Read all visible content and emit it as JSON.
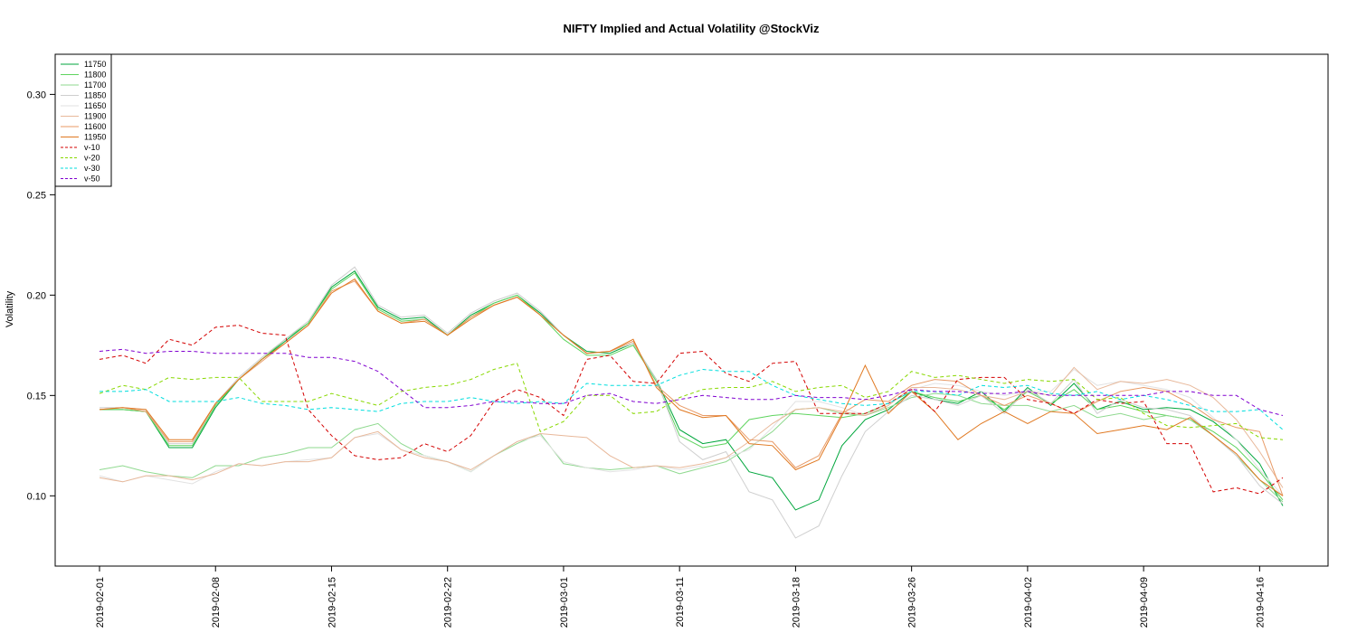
{
  "chart_data": {
    "type": "line",
    "title": "NIFTY Implied and Actual Volatility @StockViz",
    "xlabel": "",
    "ylabel": "Volatility",
    "ylim": [
      0.065,
      0.32
    ],
    "yticks": [
      0.1,
      0.15,
      0.2,
      0.25,
      0.3
    ],
    "ytick_labels": [
      "0.10",
      "0.15",
      "0.20",
      "0.25",
      "0.30"
    ],
    "x": [
      "2019-02-01",
      "2019-02-04",
      "2019-02-05",
      "2019-02-06",
      "2019-02-07",
      "2019-02-08",
      "2019-02-11",
      "2019-02-12",
      "2019-02-13",
      "2019-02-14",
      "2019-02-15",
      "2019-02-18",
      "2019-02-19",
      "2019-02-20",
      "2019-02-21",
      "2019-02-22",
      "2019-02-25",
      "2019-02-26",
      "2019-02-27",
      "2019-02-28",
      "2019-03-01",
      "2019-03-05",
      "2019-03-06",
      "2019-03-07",
      "2019-03-08",
      "2019-03-11",
      "2019-03-12",
      "2019-03-13",
      "2019-03-14",
      "2019-03-15",
      "2019-03-18",
      "2019-03-19",
      "2019-03-20",
      "2019-03-22",
      "2019-03-25",
      "2019-03-26",
      "2019-03-27",
      "2019-03-28",
      "2019-03-29",
      "2019-04-01",
      "2019-04-02",
      "2019-04-03",
      "2019-04-04",
      "2019-04-05",
      "2019-04-08",
      "2019-04-09",
      "2019-04-10",
      "2019-04-11",
      "2019-04-12",
      "2019-04-15",
      "2019-04-16",
      "2019-04-18"
    ],
    "xtick_labels": [
      "2019-02-01",
      "2019-02-08",
      "2019-02-15",
      "2019-02-22",
      "2019-03-01",
      "2019-03-11",
      "2019-03-18",
      "2019-03-26",
      "2019-04-02",
      "2019-04-09",
      "2019-04-16"
    ],
    "legend_position": "top-left",
    "grid": false,
    "series": [
      {
        "name": "11750",
        "color": "#00a63c",
        "dash": "solid",
        "values": [
          0.143,
          0.143,
          0.142,
          0.124,
          0.124,
          0.144,
          0.158,
          0.168,
          0.177,
          0.186,
          0.204,
          0.212,
          0.194,
          0.188,
          0.189,
          0.18,
          0.19,
          0.196,
          0.2,
          0.191,
          0.18,
          0.172,
          0.171,
          0.176,
          0.158,
          0.133,
          0.126,
          0.128,
          0.112,
          0.109,
          0.093,
          0.098,
          0.125,
          0.138,
          0.143,
          0.152,
          0.148,
          0.146,
          0.152,
          0.142,
          0.154,
          0.145,
          0.156,
          0.143,
          0.147,
          0.143,
          0.144,
          0.143,
          0.137,
          0.128,
          0.116,
          0.095
        ]
      },
      {
        "name": "11800",
        "color": "#5fd45f",
        "dash": "solid",
        "values": [
          0.143,
          0.143,
          0.142,
          0.125,
          0.125,
          0.145,
          0.158,
          0.168,
          0.178,
          0.186,
          0.203,
          0.211,
          0.193,
          0.187,
          0.188,
          0.18,
          0.189,
          0.196,
          0.2,
          0.19,
          0.178,
          0.17,
          0.17,
          0.175,
          0.157,
          0.13,
          0.124,
          0.126,
          0.138,
          0.14,
          0.141,
          0.14,
          0.139,
          0.141,
          0.146,
          0.152,
          0.149,
          0.147,
          0.15,
          0.143,
          0.152,
          0.146,
          0.153,
          0.143,
          0.145,
          0.142,
          0.14,
          0.138,
          0.132,
          0.124,
          0.112,
          0.098
        ]
      },
      {
        "name": "11700",
        "color": "#8fd98f",
        "dash": "solid",
        "values": [
          0.113,
          0.115,
          0.112,
          0.11,
          0.109,
          0.115,
          0.115,
          0.119,
          0.121,
          0.124,
          0.124,
          0.133,
          0.136,
          0.126,
          0.12,
          0.117,
          0.112,
          0.12,
          0.126,
          0.131,
          0.116,
          0.114,
          0.113,
          0.114,
          0.115,
          0.111,
          0.114,
          0.117,
          0.124,
          0.132,
          0.143,
          0.144,
          0.141,
          0.14,
          0.144,
          0.149,
          0.151,
          0.15,
          0.146,
          0.145,
          0.145,
          0.142,
          0.145,
          0.139,
          0.141,
          0.138,
          0.14,
          0.138,
          0.13,
          0.12,
          0.108,
          0.097
        ]
      },
      {
        "name": "11850",
        "color": "#cfcfcf",
        "dash": "solid",
        "values": [
          0.144,
          0.144,
          0.143,
          0.126,
          0.126,
          0.146,
          0.159,
          0.169,
          0.178,
          0.187,
          0.205,
          0.214,
          0.195,
          0.189,
          0.19,
          0.181,
          0.191,
          0.197,
          0.201,
          0.192,
          0.18,
          0.171,
          0.172,
          0.176,
          0.158,
          0.127,
          0.118,
          0.122,
          0.102,
          0.098,
          0.079,
          0.085,
          0.11,
          0.132,
          0.142,
          0.15,
          0.148,
          0.145,
          0.15,
          0.141,
          0.153,
          0.146,
          0.158,
          0.141,
          0.148,
          0.144,
          0.143,
          0.14,
          0.13,
          0.12,
          0.105,
          0.096
        ]
      },
      {
        "name": "11650",
        "color": "#e2e2e2",
        "dash": "solid",
        "values": [
          0.11,
          0.107,
          0.11,
          0.108,
          0.106,
          0.112,
          0.116,
          0.115,
          0.117,
          0.118,
          0.119,
          0.129,
          0.131,
          0.123,
          0.12,
          0.117,
          0.112,
          0.12,
          0.127,
          0.13,
          0.117,
          0.114,
          0.112,
          0.113,
          0.115,
          0.113,
          0.115,
          0.119,
          0.123,
          0.134,
          0.147,
          0.147,
          0.144,
          0.14,
          0.146,
          0.153,
          0.156,
          0.155,
          0.152,
          0.15,
          0.152,
          0.152,
          0.163,
          0.155,
          0.157,
          0.155,
          0.153,
          0.149,
          0.139,
          0.128,
          0.113,
          0.1
        ]
      },
      {
        "name": "11900",
        "color": "#e8b89a",
        "dash": "solid",
        "values": [
          0.109,
          0.107,
          0.11,
          0.11,
          0.108,
          0.111,
          0.116,
          0.115,
          0.117,
          0.117,
          0.119,
          0.129,
          0.132,
          0.123,
          0.119,
          0.117,
          0.113,
          0.12,
          0.127,
          0.131,
          0.13,
          0.129,
          0.12,
          0.114,
          0.115,
          0.114,
          0.116,
          0.119,
          0.127,
          0.136,
          0.143,
          0.144,
          0.142,
          0.14,
          0.145,
          0.154,
          0.154,
          0.153,
          0.15,
          0.148,
          0.152,
          0.15,
          0.164,
          0.153,
          0.157,
          0.156,
          0.158,
          0.155,
          0.149,
          0.138,
          0.122,
          0.104
        ]
      },
      {
        "name": "11600",
        "color": "#e89a66",
        "dash": "solid",
        "values": [
          0.143,
          0.144,
          0.142,
          0.127,
          0.127,
          0.146,
          0.158,
          0.167,
          0.176,
          0.185,
          0.202,
          0.207,
          0.192,
          0.186,
          0.188,
          0.18,
          0.189,
          0.195,
          0.199,
          0.19,
          0.18,
          0.171,
          0.172,
          0.177,
          0.155,
          0.145,
          0.14,
          0.14,
          0.128,
          0.127,
          0.114,
          0.12,
          0.141,
          0.148,
          0.147,
          0.155,
          0.158,
          0.157,
          0.15,
          0.145,
          0.15,
          0.146,
          0.141,
          0.147,
          0.152,
          0.154,
          0.152,
          0.146,
          0.138,
          0.134,
          0.132,
          0.1
        ]
      },
      {
        "name": "11950",
        "color": "#e07820",
        "dash": "solid",
        "values": [
          0.143,
          0.144,
          0.143,
          0.128,
          0.128,
          0.146,
          0.158,
          0.168,
          0.176,
          0.185,
          0.201,
          0.208,
          0.192,
          0.186,
          0.187,
          0.18,
          0.188,
          0.195,
          0.199,
          0.19,
          0.18,
          0.171,
          0.172,
          0.178,
          0.154,
          0.143,
          0.139,
          0.14,
          0.126,
          0.125,
          0.113,
          0.118,
          0.14,
          0.165,
          0.141,
          0.152,
          0.142,
          0.128,
          0.136,
          0.142,
          0.136,
          0.142,
          0.141,
          0.131,
          0.133,
          0.135,
          0.133,
          0.139,
          0.13,
          0.121,
          0.108,
          0.1
        ]
      },
      {
        "name": "v-10",
        "color": "#d40000",
        "dash": "4,3",
        "values": [
          0.168,
          0.17,
          0.166,
          0.178,
          0.175,
          0.184,
          0.185,
          0.181,
          0.18,
          0.143,
          0.13,
          0.12,
          0.118,
          0.119,
          0.126,
          0.122,
          0.13,
          0.147,
          0.153,
          0.149,
          0.14,
          0.168,
          0.17,
          0.157,
          0.156,
          0.171,
          0.172,
          0.161,
          0.157,
          0.166,
          0.167,
          0.141,
          0.141,
          0.141,
          0.146,
          0.153,
          0.142,
          0.158,
          0.159,
          0.159,
          0.148,
          0.146,
          0.141,
          0.148,
          0.146,
          0.147,
          0.126,
          0.126,
          0.102,
          0.104,
          0.101,
          0.109
        ]
      },
      {
        "name": "v-20",
        "color": "#88d800",
        "dash": "4,3",
        "values": [
          0.151,
          0.155,
          0.153,
          0.159,
          0.158,
          0.159,
          0.159,
          0.147,
          0.147,
          0.147,
          0.151,
          0.148,
          0.145,
          0.152,
          0.154,
          0.155,
          0.158,
          0.163,
          0.166,
          0.132,
          0.137,
          0.15,
          0.15,
          0.141,
          0.142,
          0.149,
          0.153,
          0.154,
          0.154,
          0.157,
          0.152,
          0.154,
          0.155,
          0.149,
          0.152,
          0.162,
          0.159,
          0.16,
          0.158,
          0.156,
          0.158,
          0.157,
          0.158,
          0.148,
          0.149,
          0.141,
          0.135,
          0.134,
          0.135,
          0.136,
          0.129,
          0.128
        ]
      },
      {
        "name": "v-30",
        "color": "#00dede",
        "dash": "4,3",
        "values": [
          0.152,
          0.152,
          0.153,
          0.147,
          0.147,
          0.147,
          0.149,
          0.146,
          0.145,
          0.143,
          0.144,
          0.143,
          0.142,
          0.146,
          0.147,
          0.147,
          0.149,
          0.147,
          0.146,
          0.147,
          0.146,
          0.156,
          0.155,
          0.155,
          0.155,
          0.16,
          0.163,
          0.162,
          0.162,
          0.155,
          0.15,
          0.148,
          0.146,
          0.145,
          0.146,
          0.152,
          0.152,
          0.15,
          0.155,
          0.154,
          0.155,
          0.151,
          0.15,
          0.152,
          0.148,
          0.15,
          0.148,
          0.145,
          0.142,
          0.142,
          0.143,
          0.133
        ]
      },
      {
        "name": "v-50",
        "color": "#8000d0",
        "dash": "4,3",
        "values": [
          0.172,
          0.173,
          0.171,
          0.172,
          0.172,
          0.171,
          0.171,
          0.171,
          0.171,
          0.169,
          0.169,
          0.167,
          0.162,
          0.153,
          0.144,
          0.144,
          0.145,
          0.147,
          0.147,
          0.146,
          0.146,
          0.15,
          0.151,
          0.147,
          0.146,
          0.148,
          0.15,
          0.149,
          0.148,
          0.148,
          0.15,
          0.149,
          0.149,
          0.148,
          0.15,
          0.153,
          0.152,
          0.152,
          0.151,
          0.151,
          0.152,
          0.15,
          0.15,
          0.15,
          0.15,
          0.15,
          0.152,
          0.152,
          0.15,
          0.15,
          0.143,
          0.14
        ]
      }
    ]
  }
}
